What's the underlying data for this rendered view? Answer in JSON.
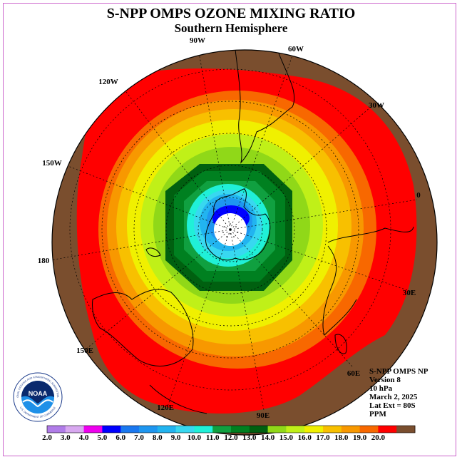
{
  "header": {
    "title": "S-NPP OMPS OZONE MIXING RATIO",
    "subtitle": "Southern Hemisphere"
  },
  "longitude_labels": [
    "90W",
    "60W",
    "30W",
    "0",
    "30E",
    "60E",
    "90E",
    "120E",
    "150E",
    "180",
    "150W",
    "120W"
  ],
  "info": {
    "instrument": "S-NPP OMPS NP",
    "version": "Version 8",
    "level": "10 hPa",
    "date": "March 2, 2025",
    "lat_ext": "Lat Ext = 80S",
    "units": "PPM"
  },
  "colorbar": {
    "labels": [
      "2.0",
      "3.0",
      "4.0",
      "5.0",
      "6.0",
      "7.0",
      "8.0",
      "9.0",
      "10.0",
      "11.0",
      "12.0",
      "13.0",
      "14.0",
      "15.0",
      "16.0",
      "17.0",
      "18.0",
      "19.0",
      "20.0"
    ],
    "colors": [
      "#b07ce8",
      "#d8a8f0",
      "#ee00ee",
      "#0000ff",
      "#1a78f0",
      "#1e96f0",
      "#22b4f0",
      "#38d8f0",
      "#20f0d8",
      "#10a040",
      "#008020",
      "#006010",
      "#90d818",
      "#c0f018",
      "#f0f000",
      "#f8c000",
      "#f89800",
      "#f86800",
      "#ff0000",
      "#7a4e2e"
    ]
  },
  "logo": {
    "text": "NOAA",
    "ring_text": "NATIONAL OCEANIC AND ATMOSPHERIC ADMINISTRATION",
    "bottom_text": "U.S. DEPARTMENT OF COMMERCE"
  },
  "map_colors": {
    "outer": "#7a4e2e",
    "land_line": "#000000",
    "grid_line": "#000000"
  }
}
